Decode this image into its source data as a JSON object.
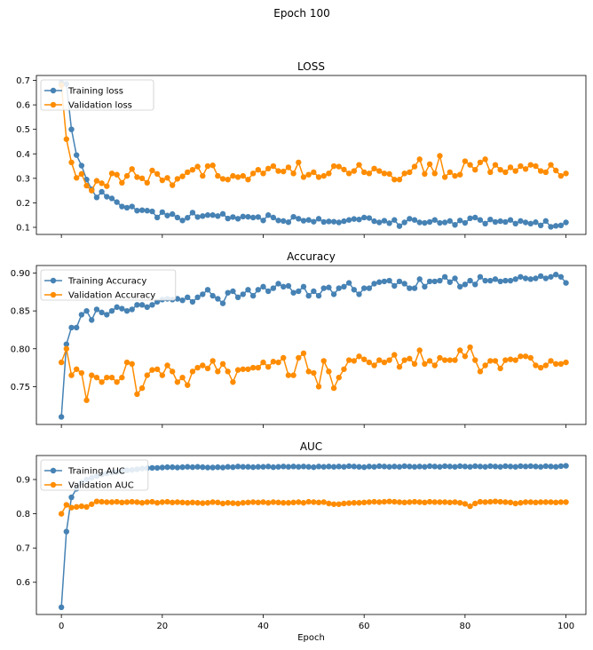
{
  "figure": {
    "suptitle": "Epoch 100"
  },
  "colors": {
    "training": "#4682b4",
    "validation": "#ff8c00"
  },
  "chart_data": [
    {
      "type": "line",
      "title": "LOSS",
      "xlabel": "",
      "ylabel": "",
      "x_range": [
        -4.95,
        103.95
      ],
      "ylim": [
        0.071,
        0.72
      ],
      "yticks": [
        0.1,
        0.2,
        0.3,
        0.4,
        0.5,
        0.6,
        0.7
      ],
      "ytick_labels": [
        "0.1",
        "0.2",
        "0.3",
        "0.4",
        "0.5",
        "0.6",
        "0.7"
      ],
      "xticks": [
        0,
        20,
        40,
        60,
        80,
        100
      ],
      "xtick_labels_visible": false,
      "legend": "top-left",
      "grid": false,
      "series": [
        {
          "name": "Training loss",
          "color": "#4682b4",
          "values": [
            0.69,
            0.685,
            0.5,
            0.395,
            0.352,
            0.295,
            0.255,
            0.222,
            0.245,
            0.225,
            0.218,
            0.203,
            0.185,
            0.18,
            0.185,
            0.168,
            0.17,
            0.168,
            0.165,
            0.14,
            0.162,
            0.148,
            0.154,
            0.14,
            0.128,
            0.139,
            0.16,
            0.142,
            0.146,
            0.15,
            0.15,
            0.146,
            0.155,
            0.136,
            0.142,
            0.135,
            0.144,
            0.143,
            0.14,
            0.142,
            0.128,
            0.15,
            0.14,
            0.128,
            0.126,
            0.121,
            0.143,
            0.135,
            0.127,
            0.13,
            0.123,
            0.135,
            0.122,
            0.124,
            0.123,
            0.12,
            0.125,
            0.13,
            0.134,
            0.132,
            0.14,
            0.138,
            0.125,
            0.12,
            0.127,
            0.117,
            0.13,
            0.105,
            0.12,
            0.135,
            0.13,
            0.12,
            0.118,
            0.122,
            0.13,
            0.118,
            0.12,
            0.126,
            0.11,
            0.128,
            0.118,
            0.137,
            0.14,
            0.13,
            0.115,
            0.132,
            0.122,
            0.125,
            0.122,
            0.13,
            0.115,
            0.126,
            0.12,
            0.115,
            0.121,
            0.108,
            0.126,
            0.102,
            0.106,
            0.108,
            0.12
          ]
        },
        {
          "name": "Validation loss",
          "color": "#ff8c00",
          "values": [
            0.68,
            0.46,
            0.365,
            0.302,
            0.318,
            0.27,
            0.25,
            0.29,
            0.28,
            0.268,
            0.32,
            0.315,
            0.282,
            0.31,
            0.338,
            0.305,
            0.3,
            0.282,
            0.332,
            0.318,
            0.292,
            0.302,
            0.272,
            0.298,
            0.308,
            0.325,
            0.335,
            0.348,
            0.31,
            0.35,
            0.353,
            0.31,
            0.298,
            0.295,
            0.31,
            0.305,
            0.31,
            0.295,
            0.32,
            0.335,
            0.32,
            0.34,
            0.35,
            0.33,
            0.328,
            0.345,
            0.32,
            0.365,
            0.305,
            0.315,
            0.325,
            0.305,
            0.31,
            0.32,
            0.35,
            0.348,
            0.336,
            0.32,
            0.33,
            0.355,
            0.325,
            0.32,
            0.34,
            0.33,
            0.32,
            0.318,
            0.295,
            0.295,
            0.32,
            0.325,
            0.348,
            0.378,
            0.318,
            0.358,
            0.32,
            0.392,
            0.305,
            0.325,
            0.31,
            0.315,
            0.37,
            0.355,
            0.335,
            0.365,
            0.378,
            0.325,
            0.355,
            0.335,
            0.325,
            0.345,
            0.33,
            0.35,
            0.338,
            0.355,
            0.35,
            0.33,
            0.325,
            0.355,
            0.332,
            0.31,
            0.32
          ]
        }
      ]
    },
    {
      "type": "line",
      "title": "Accuracy",
      "xlabel": "",
      "ylabel": "",
      "x_range": [
        -4.95,
        103.95
      ],
      "ylim": [
        0.7,
        0.91
      ],
      "yticks": [
        0.75,
        0.8,
        0.85,
        0.9
      ],
      "ytick_labels": [
        "0.75",
        "0.80",
        "0.85",
        "0.90"
      ],
      "xticks": [
        0,
        20,
        40,
        60,
        80,
        100
      ],
      "xtick_labels_visible": false,
      "legend": "top-left",
      "grid": false,
      "series": [
        {
          "name": "Training Accuracy",
          "color": "#4682b4",
          "values": [
            0.71,
            0.806,
            0.828,
            0.828,
            0.845,
            0.85,
            0.838,
            0.852,
            0.848,
            0.845,
            0.85,
            0.855,
            0.853,
            0.85,
            0.852,
            0.858,
            0.858,
            0.855,
            0.858,
            0.862,
            0.865,
            0.866,
            0.865,
            0.866,
            0.864,
            0.868,
            0.862,
            0.868,
            0.872,
            0.878,
            0.87,
            0.866,
            0.86,
            0.874,
            0.876,
            0.868,
            0.872,
            0.878,
            0.87,
            0.878,
            0.882,
            0.876,
            0.88,
            0.886,
            0.882,
            0.883,
            0.874,
            0.876,
            0.882,
            0.87,
            0.876,
            0.87,
            0.88,
            0.881,
            0.872,
            0.88,
            0.882,
            0.887,
            0.878,
            0.872,
            0.88,
            0.88,
            0.886,
            0.888,
            0.889,
            0.89,
            0.883,
            0.889,
            0.886,
            0.88,
            0.88,
            0.892,
            0.882,
            0.889,
            0.889,
            0.89,
            0.895,
            0.888,
            0.893,
            0.882,
            0.885,
            0.89,
            0.885,
            0.895,
            0.89,
            0.89,
            0.892,
            0.889,
            0.89,
            0.89,
            0.892,
            0.895,
            0.893,
            0.892,
            0.893,
            0.896,
            0.893,
            0.895,
            0.898,
            0.895,
            0.887
          ]
        },
        {
          "name": "Validation Accuracy",
          "color": "#ff8c00",
          "values": [
            0.782,
            0.8,
            0.765,
            0.773,
            0.768,
            0.732,
            0.765,
            0.762,
            0.756,
            0.762,
            0.762,
            0.756,
            0.762,
            0.782,
            0.78,
            0.74,
            0.748,
            0.765,
            0.772,
            0.773,
            0.765,
            0.778,
            0.77,
            0.756,
            0.762,
            0.752,
            0.77,
            0.775,
            0.778,
            0.774,
            0.784,
            0.77,
            0.78,
            0.77,
            0.756,
            0.772,
            0.773,
            0.773,
            0.775,
            0.775,
            0.782,
            0.776,
            0.783,
            0.782,
            0.788,
            0.765,
            0.765,
            0.788,
            0.794,
            0.77,
            0.768,
            0.75,
            0.784,
            0.77,
            0.748,
            0.762,
            0.773,
            0.785,
            0.784,
            0.79,
            0.786,
            0.782,
            0.778,
            0.785,
            0.782,
            0.785,
            0.792,
            0.776,
            0.785,
            0.787,
            0.78,
            0.798,
            0.78,
            0.784,
            0.778,
            0.788,
            0.785,
            0.785,
            0.785,
            0.798,
            0.79,
            0.802,
            0.785,
            0.77,
            0.778,
            0.784,
            0.784,
            0.774,
            0.785,
            0.786,
            0.785,
            0.79,
            0.79,
            0.788,
            0.778,
            0.775,
            0.778,
            0.784,
            0.78,
            0.78,
            0.782
          ]
        }
      ]
    },
    {
      "type": "line",
      "title": "AUC",
      "xlabel": "Epoch",
      "ylabel": "",
      "x_range": [
        -4.95,
        103.95
      ],
      "ylim": [
        0.506,
        0.97
      ],
      "yticks": [
        0.6,
        0.7,
        0.8,
        0.9
      ],
      "ytick_labels": [
        "0.6",
        "0.7",
        "0.8",
        "0.9"
      ],
      "xticks": [
        0,
        20,
        40,
        60,
        80,
        100
      ],
      "xtick_labels": [
        "0",
        "20",
        "40",
        "60",
        "80",
        "100"
      ],
      "xtick_labels_visible": true,
      "legend": "top-left",
      "grid": false,
      "series": [
        {
          "name": "Training AUC",
          "color": "#4682b4",
          "values": [
            0.527,
            0.748,
            0.848,
            0.873,
            0.891,
            0.9,
            0.905,
            0.91,
            0.915,
            0.918,
            0.92,
            0.922,
            0.925,
            0.927,
            0.928,
            0.93,
            0.932,
            0.933,
            0.934,
            0.934,
            0.935,
            0.936,
            0.936,
            0.935,
            0.936,
            0.937,
            0.936,
            0.937,
            0.936,
            0.935,
            0.935,
            0.936,
            0.935,
            0.937,
            0.936,
            0.938,
            0.937,
            0.937,
            0.936,
            0.937,
            0.937,
            0.938,
            0.936,
            0.937,
            0.938,
            0.937,
            0.938,
            0.937,
            0.938,
            0.937,
            0.936,
            0.938,
            0.937,
            0.938,
            0.937,
            0.938,
            0.937,
            0.939,
            0.938,
            0.937,
            0.936,
            0.938,
            0.937,
            0.939,
            0.938,
            0.937,
            0.938,
            0.937,
            0.939,
            0.938,
            0.937,
            0.938,
            0.937,
            0.939,
            0.938,
            0.937,
            0.939,
            0.938,
            0.937,
            0.939,
            0.938,
            0.937,
            0.939,
            0.938,
            0.937,
            0.939,
            0.938,
            0.937,
            0.939,
            0.938,
            0.937,
            0.939,
            0.938,
            0.939,
            0.938,
            0.937,
            0.939,
            0.938,
            0.937,
            0.939,
            0.94
          ]
        },
        {
          "name": "Validation AUC",
          "color": "#ff8c00",
          "values": [
            0.8,
            0.826,
            0.818,
            0.82,
            0.822,
            0.82,
            0.828,
            0.836,
            0.835,
            0.834,
            0.834,
            0.835,
            0.833,
            0.834,
            0.835,
            0.834,
            0.832,
            0.834,
            0.835,
            0.832,
            0.834,
            0.835,
            0.833,
            0.834,
            0.833,
            0.832,
            0.833,
            0.832,
            0.831,
            0.832,
            0.834,
            0.833,
            0.83,
            0.832,
            0.831,
            0.83,
            0.832,
            0.833,
            0.834,
            0.833,
            0.834,
            0.832,
            0.834,
            0.833,
            0.832,
            0.832,
            0.833,
            0.834,
            0.832,
            0.835,
            0.834,
            0.833,
            0.834,
            0.83,
            0.828,
            0.828,
            0.83,
            0.831,
            0.832,
            0.832,
            0.833,
            0.834,
            0.835,
            0.834,
            0.835,
            0.836,
            0.835,
            0.834,
            0.833,
            0.834,
            0.835,
            0.834,
            0.833,
            0.835,
            0.834,
            0.834,
            0.834,
            0.833,
            0.834,
            0.832,
            0.829,
            0.822,
            0.83,
            0.835,
            0.834,
            0.835,
            0.836,
            0.835,
            0.834,
            0.833,
            0.83,
            0.832,
            0.834,
            0.834,
            0.833,
            0.834,
            0.834,
            0.834,
            0.833,
            0.834,
            0.834
          ]
        }
      ]
    }
  ]
}
